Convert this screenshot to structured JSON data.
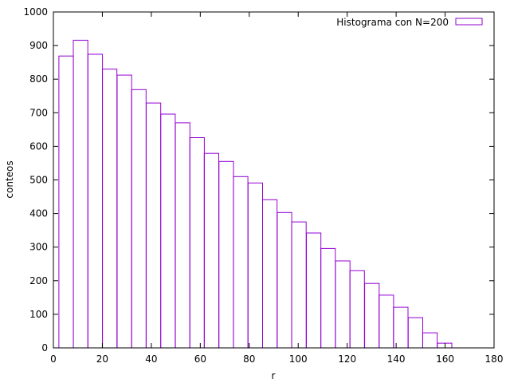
{
  "chart_data": {
    "type": "bar",
    "title": "",
    "xlabel": "r",
    "ylabel": "conteos",
    "xlim": [
      0,
      180
    ],
    "ylim": [
      0,
      1000
    ],
    "xticks": [
      0,
      20,
      40,
      60,
      80,
      100,
      120,
      140,
      160,
      180
    ],
    "yticks": [
      0,
      100,
      200,
      300,
      400,
      500,
      600,
      700,
      800,
      900,
      1000
    ],
    "xtick_labels": [
      "0",
      "20",
      "40",
      "60",
      "80",
      "100",
      "120",
      "140",
      "160",
      "180"
    ],
    "ytick_labels": [
      "0",
      "100",
      "200",
      "300",
      "400",
      "500",
      "600",
      "700",
      "800",
      "900",
      "1000"
    ],
    "legend_position": "top-right",
    "grid": false,
    "series": [
      {
        "name": "Histograma con N=200",
        "color": "#9400d3",
        "bin_width": 5.94,
        "bin_centers": [
          5.2,
          11.1,
          17.1,
          23.0,
          29.0,
          34.9,
          40.9,
          46.8,
          52.8,
          58.7,
          64.6,
          70.6,
          76.5,
          82.5,
          88.4,
          94.4,
          100.3,
          106.3,
          112.2,
          118.2,
          124.1,
          130.1,
          136.0,
          141.9,
          147.9,
          153.8,
          159.8
        ],
        "values": [
          869,
          916,
          874,
          830,
          812,
          769,
          729,
          696,
          670,
          626,
          579,
          555,
          510,
          491,
          441,
          403,
          375,
          342,
          296,
          259,
          230,
          192,
          157,
          121,
          90,
          45,
          14
        ]
      }
    ]
  }
}
